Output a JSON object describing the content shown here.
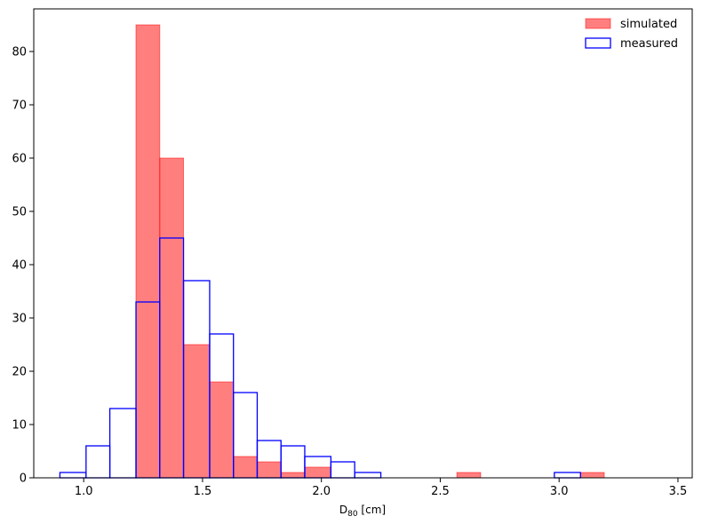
{
  "chart_data": {
    "type": "bar",
    "subtype": "histogram",
    "xlabel_main": "D",
    "xlabel_sub": "80",
    "xlabel_unit": " [cm]",
    "ylabel": "",
    "xlim": [
      0.79,
      3.56
    ],
    "ylim": [
      0,
      88
    ],
    "xticks": [
      1.0,
      1.5,
      2.0,
      2.5,
      3.0,
      3.5
    ],
    "xtick_labels": [
      "1.0",
      "1.5",
      "2.0",
      "2.5",
      "3.0",
      "3.5"
    ],
    "yticks": [
      0,
      10,
      20,
      30,
      40,
      50,
      60,
      70,
      80
    ],
    "ytick_labels": [
      "0",
      "10",
      "20",
      "30",
      "40",
      "50",
      "60",
      "70",
      "80"
    ],
    "grid": false,
    "legend_position": "top-right",
    "series": [
      {
        "name": "simulated",
        "style": "filled",
        "color": "#ff0000",
        "fill_opacity": 0.5,
        "bins": [
          {
            "x0": 1.22,
            "x1": 1.32,
            "value": 85
          },
          {
            "x0": 1.32,
            "x1": 1.42,
            "value": 60
          },
          {
            "x0": 1.42,
            "x1": 1.53,
            "value": 25
          },
          {
            "x0": 1.53,
            "x1": 1.63,
            "value": 18
          },
          {
            "x0": 1.63,
            "x1": 1.73,
            "value": 4
          },
          {
            "x0": 1.73,
            "x1": 1.83,
            "value": 3
          },
          {
            "x0": 1.83,
            "x1": 1.93,
            "value": 1
          },
          {
            "x0": 1.93,
            "x1": 2.04,
            "value": 2
          },
          {
            "x0": 2.57,
            "x1": 2.67,
            "value": 1
          },
          {
            "x0": 3.09,
            "x1": 3.19,
            "value": 1
          }
        ]
      },
      {
        "name": "measured",
        "style": "outline",
        "color": "#0000ff",
        "bins": [
          {
            "x0": 0.9,
            "x1": 1.01,
            "value": 1
          },
          {
            "x0": 1.01,
            "x1": 1.11,
            "value": 6
          },
          {
            "x0": 1.11,
            "x1": 1.22,
            "value": 13
          },
          {
            "x0": 1.22,
            "x1": 1.32,
            "value": 33
          },
          {
            "x0": 1.32,
            "x1": 1.42,
            "value": 45
          },
          {
            "x0": 1.42,
            "x1": 1.53,
            "value": 37
          },
          {
            "x0": 1.53,
            "x1": 1.63,
            "value": 27
          },
          {
            "x0": 1.63,
            "x1": 1.73,
            "value": 16
          },
          {
            "x0": 1.73,
            "x1": 1.83,
            "value": 7
          },
          {
            "x0": 1.83,
            "x1": 1.93,
            "value": 6
          },
          {
            "x0": 1.93,
            "x1": 2.04,
            "value": 4
          },
          {
            "x0": 2.04,
            "x1": 2.14,
            "value": 3
          },
          {
            "x0": 2.14,
            "x1": 2.25,
            "value": 1
          },
          {
            "x0": 2.98,
            "x1": 3.09,
            "value": 1
          }
        ]
      }
    ]
  }
}
